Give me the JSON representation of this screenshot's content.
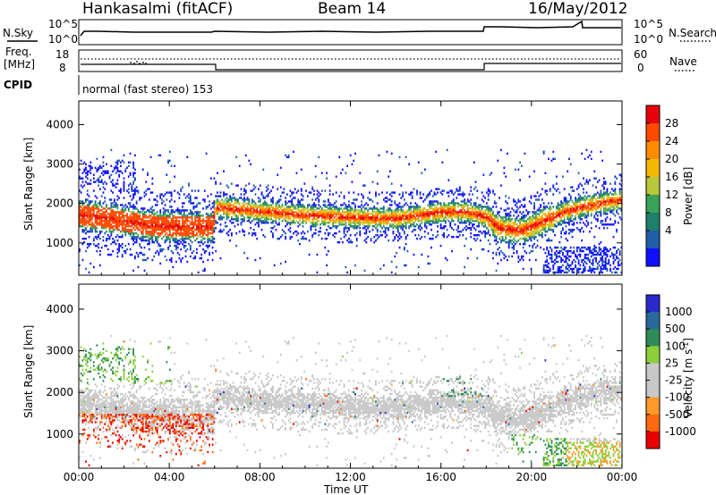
{
  "header": {
    "station": "Hankasalmi (fitACF)",
    "beam": "Beam 14",
    "date": "16/May/2012"
  },
  "sky_panel": {
    "left_label": "N.Sky",
    "right_label": "N.Search",
    "left_ticks": [
      "10^5",
      "10^0"
    ],
    "right_ticks": [
      "10^5",
      "10^0"
    ]
  },
  "freq_panel": {
    "left_label_1": "Freq.",
    "left_label_2": "[MHz]",
    "right_label": "Nave",
    "left_ticks": [
      "18",
      "8"
    ],
    "right_ticks": [
      "60",
      "0"
    ]
  },
  "cpid_panel": {
    "label": "CPID",
    "text": "normal (fast stereo) 153"
  },
  "chart_data": [
    {
      "type": "heatmap",
      "panel": "power",
      "ylabel": "Slant Range [km]",
      "ylim": [
        180,
        4600
      ],
      "yticks": [
        "1000",
        "2000",
        "3000",
        "4000"
      ],
      "xlim": [
        0,
        24
      ],
      "xticks": [
        "00:00",
        "04:00",
        "08:00",
        "12:00",
        "16:00",
        "20:00",
        "00:00"
      ],
      "colorbar": {
        "title": "Power [dB]",
        "ticks": [
          "28",
          "24",
          "20",
          "16",
          "12",
          "8",
          "4"
        ],
        "colors": [
          "#e8000b",
          "#ff4a00",
          "#ff8c00",
          "#f5b800",
          "#b7c93a",
          "#3aa35a",
          "#1e7f6b",
          "#1f5fa8",
          "#1010ff"
        ]
      },
      "main_band_center_km": [
        [
          0.0,
          1700
        ],
        [
          1.0,
          1650
        ],
        [
          2.0,
          1550
        ],
        [
          3.0,
          1450
        ],
        [
          4.0,
          1420
        ],
        [
          5.0,
          1400
        ],
        [
          5.9,
          1400
        ],
        [
          6.0,
          1900
        ],
        [
          8.0,
          1800
        ],
        [
          10.0,
          1700
        ],
        [
          12.0,
          1650
        ],
        [
          14.0,
          1620
        ],
        [
          16.0,
          1780
        ],
        [
          17.0,
          1800
        ],
        [
          18.0,
          1650
        ],
        [
          18.5,
          1400
        ],
        [
          19.5,
          1300
        ],
        [
          20.5,
          1550
        ],
        [
          21.5,
          1800
        ],
        [
          22.5,
          1950
        ],
        [
          23.5,
          2050
        ],
        [
          24.0,
          2100
        ]
      ]
    },
    {
      "type": "heatmap",
      "panel": "velocity",
      "ylabel": "Slant Range [km]",
      "ylim": [
        180,
        4600
      ],
      "yticks": [
        "1000",
        "2000",
        "3000",
        "4000"
      ],
      "xlim": [
        0,
        24
      ],
      "xticks": [
        "00:00",
        "04:00",
        "08:00",
        "12:00",
        "16:00",
        "20:00",
        "00:00"
      ],
      "xlabel": "Time UT",
      "colorbar": {
        "title": "Velocity [m s^-1]",
        "ticks": [
          "1000",
          "500",
          "100",
          "25",
          "-25",
          "-100",
          "-500",
          "-1000"
        ],
        "colors": [
          "#2a2acc",
          "#2a6a9a",
          "#2f8c58",
          "#8ccf3a",
          "#c8c8c8",
          "#c8c8c8",
          "#ff9a2a",
          "#ff6a10",
          "#e80000"
        ]
      }
    }
  ]
}
